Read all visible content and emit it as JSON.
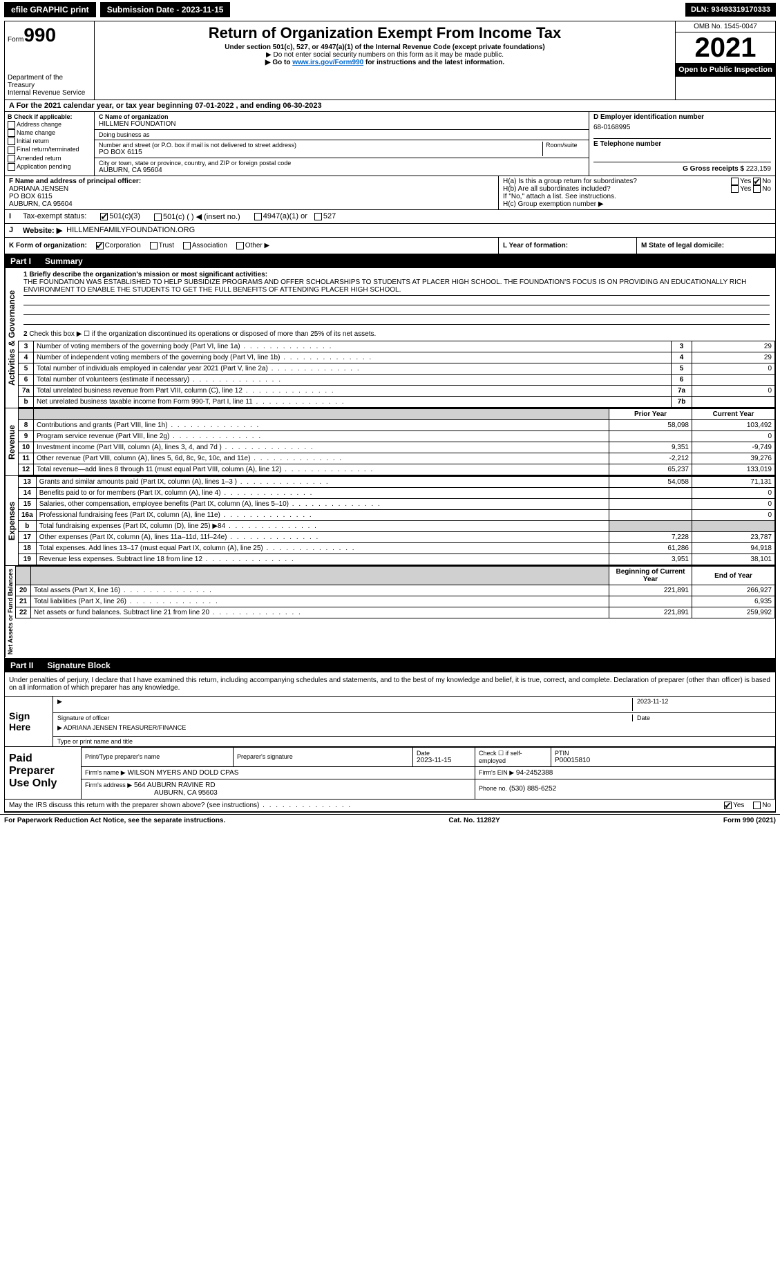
{
  "top_bar": {
    "efile": "efile GRAPHIC print",
    "submission": "Submission Date - 2023-11-15",
    "dln": "DLN: 93493319170333"
  },
  "header": {
    "form_label": "Form",
    "form_number": "990",
    "dept": "Department of the Treasury",
    "irs": "Internal Revenue Service",
    "title": "Return of Organization Exempt From Income Tax",
    "subtitle": "Under section 501(c), 527, or 4947(a)(1) of the Internal Revenue Code (except private foundations)",
    "warn": "▶ Do not enter social security numbers on this form as it may be made public.",
    "goto": "▶ Go to ",
    "goto_link": "www.irs.gov/Form990",
    "goto_after": " for instructions and the latest information.",
    "omb": "OMB No. 1545-0047",
    "year": "2021",
    "open": "Open to Public Inspection"
  },
  "row_a": "A For the 2021 calendar year, or tax year beginning 07-01-2022    , and ending 06-30-2023",
  "section_b": {
    "title": "B Check if applicable:",
    "items": [
      "Address change",
      "Name change",
      "Initial return",
      "Final return/terminated",
      "Amended return",
      "Application pending"
    ]
  },
  "section_c": {
    "name_label": "C Name of organization",
    "name": "HILLMEN FOUNDATION",
    "dba_label": "Doing business as",
    "dba": "",
    "addr_label": "Number and street (or P.O. box if mail is not delivered to street address)",
    "room_label": "Room/suite",
    "addr": "PO BOX 6115",
    "city_label": "City or town, state or province, country, and ZIP or foreign postal code",
    "city": "AUBURN, CA  95604"
  },
  "section_d": {
    "label": "D Employer identification number",
    "ein": "68-0168995",
    "tel_label": "E Telephone number",
    "tel": "",
    "gross_label": "G Gross receipts $",
    "gross": "223,159"
  },
  "section_f": {
    "label": "F Name and address of principal officer:",
    "name": "ADRIANA JENSEN",
    "addr1": "PO BOX 6115",
    "addr2": "AUBURN, CA  95604"
  },
  "section_h": {
    "ha": "H(a) Is this a group return for subordinates?",
    "hb": "H(b) Are all subordinates included?",
    "hb_note": "If \"No,\" attach a list. See instructions.",
    "hc": "H(c) Group exemption number ▶"
  },
  "row_i": {
    "label": "Tax-exempt status:",
    "opts": [
      "501(c)(3)",
      "501(c) (   ) ◀ (insert no.)",
      "4947(a)(1) or",
      "527"
    ]
  },
  "row_j": {
    "label": "Website: ▶",
    "value": "HILLMENFAMILYFOUNDATION.ORG"
  },
  "row_k": {
    "k1": "K Form of organization:",
    "opts": [
      "Corporation",
      "Trust",
      "Association",
      "Other ▶"
    ],
    "k2_label": "L Year of formation:",
    "k2": "",
    "k3_label": "M State of legal domicile:",
    "k3": ""
  },
  "part1": {
    "header_num": "Part I",
    "header_title": "Summary",
    "line1_label": "1 Briefly describe the organization's mission or most significant activities:",
    "mission": "THE FOUNDATION WAS ESTABLISHED TO HELP SUBSIDIZE PROGRAMS AND OFFER SCHOLARSHIPS TO STUDENTS AT PLACER HIGH SCHOOL. THE FOUNDATION'S FOCUS IS ON PROVIDING AN EDUCATIONALLY RICH ENVIRONMENT TO ENABLE THE STUDENTS TO GET THE FULL BENEFITS OF ATTENDING PLACER HIGH SCHOOL.",
    "line2": "Check this box ▶ ☐ if the organization discontinued its operations or disposed of more than 25% of its net assets.",
    "governance": [
      {
        "n": "3",
        "label": "Number of voting members of the governing body (Part VI, line 1a)",
        "rn": "3",
        "val": "29"
      },
      {
        "n": "4",
        "label": "Number of independent voting members of the governing body (Part VI, line 1b)",
        "rn": "4",
        "val": "29"
      },
      {
        "n": "5",
        "label": "Total number of individuals employed in calendar year 2021 (Part V, line 2a)",
        "rn": "5",
        "val": "0"
      },
      {
        "n": "6",
        "label": "Total number of volunteers (estimate if necessary)",
        "rn": "6",
        "val": ""
      },
      {
        "n": "7a",
        "label": "Total unrelated business revenue from Part VIII, column (C), line 12",
        "rn": "7a",
        "val": "0"
      },
      {
        "n": "b",
        "label": "Net unrelated business taxable income from Form 990-T, Part I, line 11",
        "rn": "7b",
        "val": ""
      }
    ],
    "col_headers": {
      "prior": "Prior Year",
      "current": "Current Year"
    },
    "revenue": [
      {
        "n": "8",
        "label": "Contributions and grants (Part VIII, line 1h)",
        "prior": "58,098",
        "current": "103,492"
      },
      {
        "n": "9",
        "label": "Program service revenue (Part VIII, line 2g)",
        "prior": "",
        "current": "0"
      },
      {
        "n": "10",
        "label": "Investment income (Part VIII, column (A), lines 3, 4, and 7d )",
        "prior": "9,351",
        "current": "-9,749"
      },
      {
        "n": "11",
        "label": "Other revenue (Part VIII, column (A), lines 5, 6d, 8c, 9c, 10c, and 11e)",
        "prior": "-2,212",
        "current": "39,276"
      },
      {
        "n": "12",
        "label": "Total revenue—add lines 8 through 11 (must equal Part VIII, column (A), line 12)",
        "prior": "65,237",
        "current": "133,019"
      }
    ],
    "expenses": [
      {
        "n": "13",
        "label": "Grants and similar amounts paid (Part IX, column (A), lines 1–3 )",
        "prior": "54,058",
        "current": "71,131"
      },
      {
        "n": "14",
        "label": "Benefits paid to or for members (Part IX, column (A), line 4)",
        "prior": "",
        "current": "0"
      },
      {
        "n": "15",
        "label": "Salaries, other compensation, employee benefits (Part IX, column (A), lines 5–10)",
        "prior": "",
        "current": "0"
      },
      {
        "n": "16a",
        "label": "Professional fundraising fees (Part IX, column (A), line 11e)",
        "prior": "",
        "current": "0"
      },
      {
        "n": "b",
        "label": "Total fundraising expenses (Part IX, column (D), line 25) ▶84",
        "prior": "grey",
        "current": "grey"
      },
      {
        "n": "17",
        "label": "Other expenses (Part IX, column (A), lines 11a–11d, 11f–24e)",
        "prior": "7,228",
        "current": "23,787"
      },
      {
        "n": "18",
        "label": "Total expenses. Add lines 13–17 (must equal Part IX, column (A), line 25)",
        "prior": "61,286",
        "current": "94,918"
      },
      {
        "n": "19",
        "label": "Revenue less expenses. Subtract line 18 from line 12",
        "prior": "3,951",
        "current": "38,101"
      }
    ],
    "na_headers": {
      "begin": "Beginning of Current Year",
      "end": "End of Year"
    },
    "netassets": [
      {
        "n": "20",
        "label": "Total assets (Part X, line 16)",
        "prior": "221,891",
        "current": "266,927"
      },
      {
        "n": "21",
        "label": "Total liabilities (Part X, line 26)",
        "prior": "",
        "current": "6,935"
      },
      {
        "n": "22",
        "label": "Net assets or fund balances. Subtract line 21 from line 20",
        "prior": "221,891",
        "current": "259,992"
      }
    ],
    "side_labels": {
      "gov": "Activities & Governance",
      "rev": "Revenue",
      "exp": "Expenses",
      "na": "Net Assets or Fund Balances"
    }
  },
  "part2": {
    "header_num": "Part II",
    "header_title": "Signature Block",
    "declaration": "Under penalties of perjury, I declare that I have examined this return, including accompanying schedules and statements, and to the best of my knowledge and belief, it is true, correct, and complete. Declaration of preparer (other than officer) is based on all information of which preparer has any knowledge.",
    "sign_here": "Sign Here",
    "sig_officer": "Signature of officer",
    "sig_date": "2023-11-12",
    "sig_date_label": "Date",
    "officer_name": "ADRIANA JENSEN  TREASURER/FINANCE",
    "officer_label": "Type or print name and title",
    "paid_preparer": "Paid Preparer Use Only",
    "prep_name_label": "Print/Type preparer's name",
    "prep_name": "",
    "prep_sig_label": "Preparer's signature",
    "prep_date_label": "Date",
    "prep_date": "2023-11-15",
    "self_emp": "Check ☐ if self-employed",
    "ptin_label": "PTIN",
    "ptin": "P00015810",
    "firm_name_label": "Firm's name    ▶",
    "firm_name": "WILSON MYERS AND DOLD CPAS",
    "firm_ein_label": "Firm's EIN ▶",
    "firm_ein": "94-2452388",
    "firm_addr_label": "Firm's address ▶",
    "firm_addr": "564 AUBURN RAVINE RD",
    "firm_city": "AUBURN, CA  95603",
    "phone_label": "Phone no.",
    "phone": "(530) 885-6252",
    "discuss": "May the IRS discuss this return with the preparer shown above? (see instructions)",
    "yes": "Yes",
    "no": "No"
  },
  "footer": {
    "left": "For Paperwork Reduction Act Notice, see the separate instructions.",
    "center": "Cat. No. 11282Y",
    "right": "Form 990 (2021)"
  }
}
